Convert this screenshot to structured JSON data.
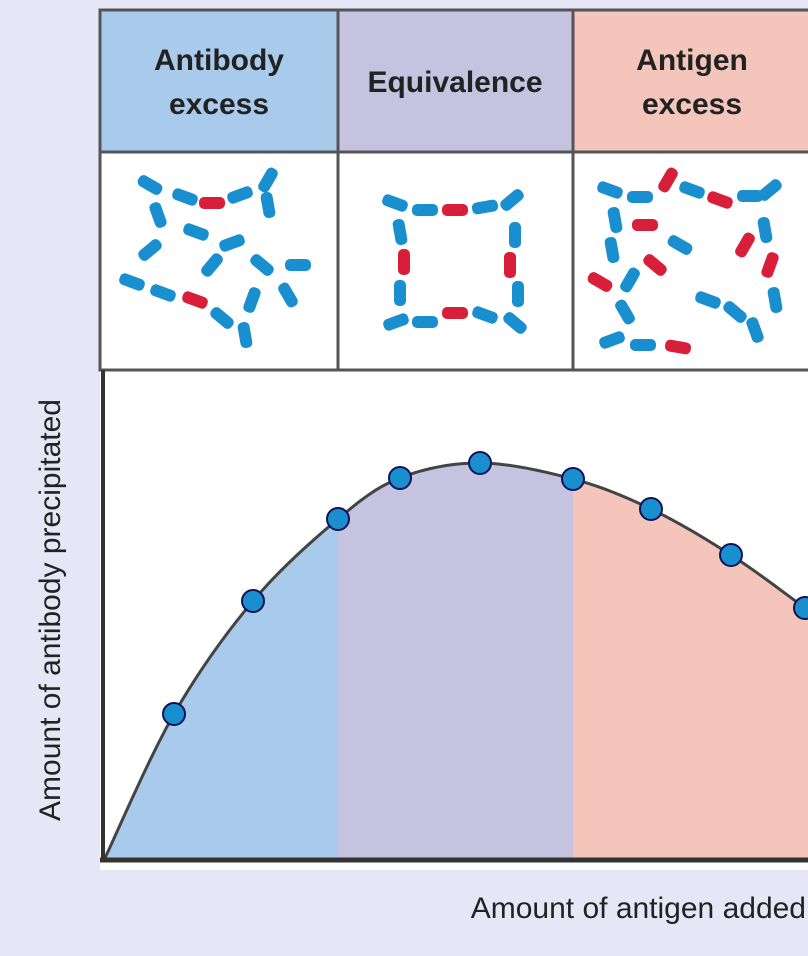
{
  "zones": [
    {
      "label": [
        "Antibody",
        "excess"
      ]
    },
    {
      "label": [
        "Equivalence"
      ]
    },
    {
      "label": [
        "Antigen",
        "excess"
      ]
    }
  ],
  "y_axis_label": "Amount of antibody precipitated",
  "x_axis_label": "Amount of antigen added"
}
